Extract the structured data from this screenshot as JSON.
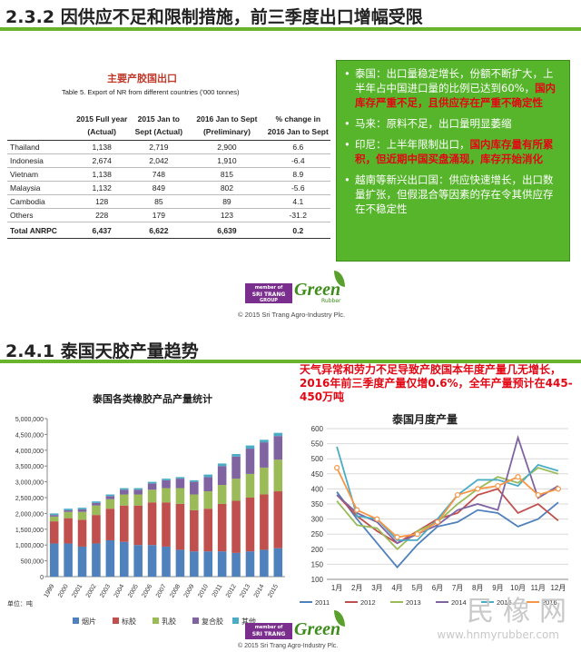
{
  "section1": {
    "title": "2.3.2 因供应不足和限制措施，前三季度出口增幅受限",
    "table_title_cn": "主要产胶国出口",
    "table_caption": "Table 5. Export of NR from different countries ('000 tonnes)",
    "headers": [
      "",
      "2015 Full year (Actual)",
      "2015 Jan to Sept (Actual)",
      "2016 Jan to Sept (Preliminary)",
      "% change in 2016 Jan to Sept"
    ],
    "rows": [
      [
        "Thailand",
        "1,138",
        "2,719",
        "2,900",
        "6.6"
      ],
      [
        "Indonesia",
        "2,674",
        "2,042",
        "1,910",
        "-6.4"
      ],
      [
        "Vietnam",
        "1,138",
        "748",
        "815",
        "8.9"
      ],
      [
        "Malaysia",
        "1,132",
        "849",
        "802",
        "-5.6"
      ],
      [
        "Cambodia",
        "128",
        "85",
        "89",
        "4.1"
      ],
      [
        "Others",
        "228",
        "179",
        "123",
        "-31.2"
      ]
    ],
    "others_note": "1",
    "total_row": [
      "Total ANRPC",
      "6,437",
      "6,622",
      "6,639",
      "0.2"
    ],
    "bullets": [
      {
        "plain": "泰国：出口量稳定增长，份额不断扩大，上半年占中国进口量的比例已达到60%，",
        "red": "国内库存严重不足，且供应存在严重不确定性"
      },
      {
        "plain": "马来：原料不足，出口量明显萎缩",
        "red": ""
      },
      {
        "plain": "印尼：上半年限制出口，",
        "red": "国内库存量有所累积，但近期中国买盘涌现，库存开始消化"
      },
      {
        "plain": "越南等新兴出口国：供应快速增长，出口数量扩张，但假混合等因素的存在令其供应存在不稳定性",
        "red": ""
      }
    ]
  },
  "logo": {
    "badge_line1": "member of",
    "badge_line2": "SRI TRANG",
    "badge_line3": "GROUP",
    "word": "Green",
    "sub": "Rubber",
    "copyright": "© 2015 Sri Trang Agro-Industry Plc."
  },
  "section2": {
    "title": "2.4.1 泰国天胶产量趋势",
    "annotation": "天气异常和劳力不足导致产胶国本年度产量几无增长，2016年前三季度产量仅增0.6%，全年产量预计在445-450万吨",
    "unit_label": "单位：吨"
  },
  "watermark": {
    "text": "民橡网",
    "url": "www.hnmyrubber.com"
  },
  "colors": {
    "green_accent": "#57b52b",
    "red_text": "#e30613",
    "purple_badge": "#7a2e8e"
  },
  "chart_data": [
    {
      "type": "bar",
      "stacked": true,
      "title": "泰国各类橡胶产品产量统计",
      "categories": [
        "1999",
        "2000",
        "2001",
        "2002",
        "2003",
        "2004",
        "2005",
        "2006",
        "2007",
        "2008",
        "2009",
        "2010",
        "2011",
        "2012",
        "2013",
        "2014",
        "2015"
      ],
      "series": [
        {
          "name": "烟片",
          "color": "#4f81bd",
          "values": [
            1050000,
            1050000,
            950000,
            1050000,
            1150000,
            1100000,
            1000000,
            1000000,
            950000,
            850000,
            800000,
            800000,
            800000,
            750000,
            800000,
            850000,
            900000
          ]
        },
        {
          "name": "标胶",
          "color": "#c0504d",
          "values": [
            700000,
            800000,
            850000,
            900000,
            1000000,
            1150000,
            1250000,
            1350000,
            1400000,
            1450000,
            1300000,
            1350000,
            1500000,
            1650000,
            1700000,
            1750000,
            1800000
          ]
        },
        {
          "name": "乳胶",
          "color": "#9bbb59",
          "values": [
            150000,
            200000,
            250000,
            300000,
            300000,
            350000,
            350000,
            400000,
            450000,
            500000,
            500000,
            550000,
            600000,
            700000,
            750000,
            850000,
            1000000
          ]
        },
        {
          "name": "复合胶",
          "color": "#8064a2",
          "values": [
            50000,
            50000,
            80000,
            80000,
            100000,
            150000,
            150000,
            200000,
            250000,
            300000,
            400000,
            450000,
            600000,
            700000,
            800000,
            800000,
            750000
          ]
        },
        {
          "name": "其他",
          "color": "#4bacc6",
          "values": [
            50000,
            50000,
            50000,
            50000,
            50000,
            50000,
            50000,
            50000,
            50000,
            50000,
            50000,
            80000,
            80000,
            80000,
            100000,
            80000,
            100000
          ]
        }
      ],
      "ylim": [
        0,
        5000000
      ],
      "yticks": [
        "0",
        "500,000",
        "1,000,000",
        "1,500,000",
        "2,000,000",
        "2,500,000",
        "3,000,000",
        "3,500,000",
        "4,000,000",
        "4,500,000",
        "5,000,000"
      ],
      "legend": "bottom",
      "grid": false
    },
    {
      "type": "line",
      "title": "泰国月度产量",
      "categories": [
        "1月",
        "2月",
        "3月",
        "4月",
        "5月",
        "6月",
        "7月",
        "8月",
        "9月",
        "10月",
        "11月",
        "12月"
      ],
      "ylim": [
        100,
        600
      ],
      "yticks": [
        "100",
        "150",
        "200",
        "250",
        "300",
        "350",
        "400",
        "450",
        "500",
        "550",
        "600"
      ],
      "series": [
        {
          "name": "2011",
          "color": "#4f81bd",
          "values": [
            390,
            300,
            220,
            140,
            215,
            275,
            290,
            330,
            320,
            275,
            300,
            355
          ]
        },
        {
          "name": "2012",
          "color": "#c0504d",
          "values": [
            380,
            310,
            260,
            220,
            260,
            300,
            320,
            380,
            400,
            320,
            350,
            295
          ]
        },
        {
          "name": "2013",
          "color": "#9bbb59",
          "values": [
            360,
            280,
            270,
            200,
            260,
            290,
            350,
            400,
            440,
            420,
            470,
            450
          ]
        },
        {
          "name": "2014",
          "color": "#8064a2",
          "values": [
            380,
            320,
            290,
            220,
            250,
            280,
            330,
            350,
            330,
            570,
            370,
            410
          ]
        },
        {
          "name": "2015",
          "color": "#4bacc6",
          "values": [
            540,
            310,
            300,
            230,
            230,
            300,
            380,
            430,
            430,
            410,
            480,
            460
          ]
        },
        {
          "name": "2016",
          "color": "#f79646",
          "values": [
            470,
            330,
            300,
            240,
            250,
            290,
            380,
            400,
            410,
            440,
            380,
            400
          ]
        }
      ],
      "legend": "bottom",
      "grid": true
    }
  ]
}
